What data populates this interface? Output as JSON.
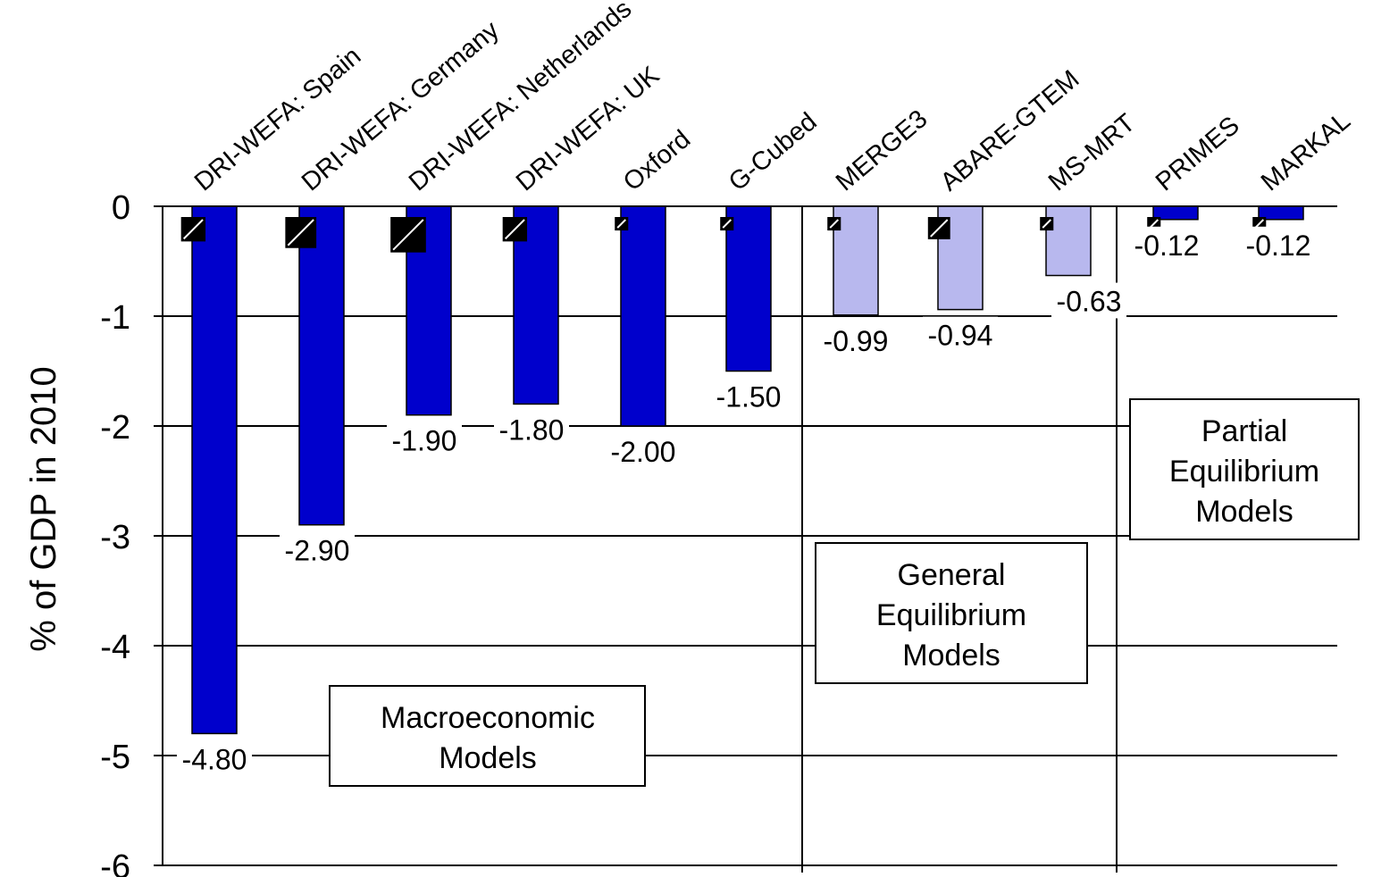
{
  "chart_data": {
    "type": "bar",
    "title": "",
    "xlabel": "",
    "ylabel": "% of GDP in 2010",
    "ylim": [
      -6,
      0
    ],
    "yticks": [
      0,
      -1,
      -2,
      -3,
      -4,
      -5,
      -6
    ],
    "grid": true,
    "categories": [
      "DRI-WEFA: Spain",
      "DRI-WEFA: Germany",
      "DRI-WEFA: Netherlands",
      "DRI-WEFA: UK",
      "Oxford",
      "G-Cubed",
      "MERGE3",
      "ABARE-GTEM",
      "MS-MRT",
      "PRIMES",
      "MARKAL"
    ],
    "values": [
      -4.8,
      -2.9,
      -1.9,
      -1.8,
      -2.0,
      -1.5,
      -0.99,
      -0.94,
      -0.63,
      -0.12,
      -0.12
    ],
    "value_labels": [
      "-4.80",
      "-2.90",
      "-1.90",
      "-1.80",
      "-2.00",
      "-1.50",
      "-0.99",
      "-0.94",
      "-0.63",
      "-0.12",
      "-0.12"
    ],
    "range_low": [
      -0.32,
      -0.38,
      -0.42,
      -0.32,
      -0.22,
      -0.22,
      -0.22,
      -0.3,
      -0.22,
      -0.22,
      -0.22
    ],
    "bar_groups": [
      "macro",
      "macro",
      "macro",
      "macro",
      "macro",
      "macro",
      "ge",
      "ge",
      "ge",
      "pe",
      "pe"
    ],
    "colors": {
      "macro": "#0000cc",
      "ge": "#b8b8ee",
      "pe": "#0000cc",
      "grid": "#000000",
      "range_marker": "#000000"
    },
    "groups": [
      {
        "id": "macro",
        "label_lines": [
          "Macroeconomic",
          "Models"
        ]
      },
      {
        "id": "ge",
        "label_lines": [
          "General",
          "Equilibrium",
          "Models"
        ]
      },
      {
        "id": "pe",
        "label_lines": [
          "Partial",
          "Equilibrium",
          "Models"
        ]
      }
    ]
  }
}
